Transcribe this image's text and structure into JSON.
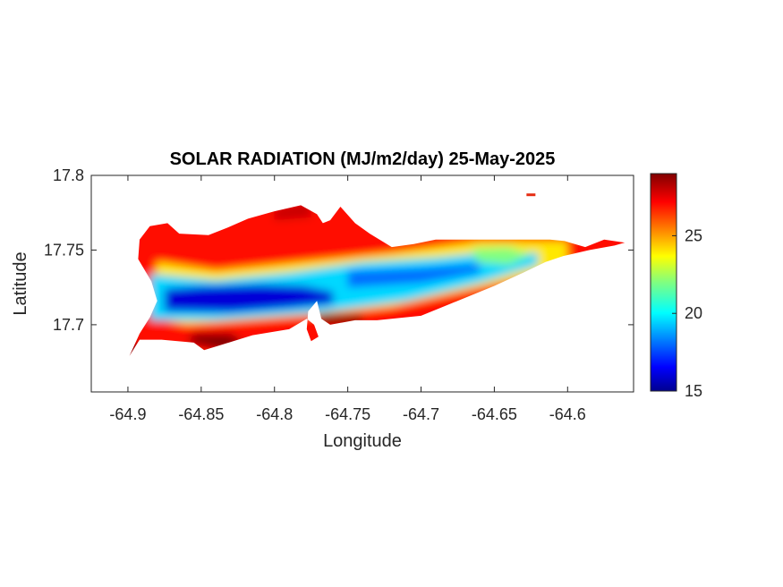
{
  "chart_data": {
    "type": "heatmap",
    "title": "SOLAR RADIATION (MJ/m2/day) 25-May-2025",
    "xlabel": "Longitude",
    "ylabel": "Latitude",
    "xlim": [
      -64.925,
      -64.555
    ],
    "ylim": [
      17.655,
      17.8
    ],
    "x_ticks": [
      -64.9,
      -64.85,
      -64.8,
      -64.75,
      -64.7,
      -64.65,
      -64.6
    ],
    "x_tick_labels": [
      "-64.9",
      "-64.85",
      "-64.8",
      "-64.75",
      "-64.7",
      "-64.65",
      "-64.6"
    ],
    "y_ticks": [
      17.8,
      17.75,
      17.7
    ],
    "y_tick_labels": [
      "17.8",
      "17.75",
      "17.7"
    ],
    "colorbar": {
      "colormap": "jet",
      "range": [
        15,
        29
      ],
      "ticks": [
        15,
        20,
        25
      ],
      "tick_labels": [
        "15",
        "20",
        "25"
      ]
    },
    "region_outline": [
      [
        -64.899,
        17.679
      ],
      [
        -64.892,
        17.69
      ],
      [
        -64.877,
        17.69
      ],
      [
        -64.855,
        17.688
      ],
      [
        -64.848,
        17.683
      ],
      [
        -64.838,
        17.686
      ],
      [
        -64.815,
        17.693
      ],
      [
        -64.79,
        17.697
      ],
      [
        -64.778,
        17.704
      ],
      [
        -64.773,
        17.7
      ],
      [
        -64.77,
        17.692
      ],
      [
        -64.775,
        17.689
      ],
      [
        -64.778,
        17.697
      ],
      [
        -64.777,
        17.709
      ],
      [
        -64.771,
        17.716
      ],
      [
        -64.768,
        17.704
      ],
      [
        -64.762,
        17.7
      ],
      [
        -64.745,
        17.703
      ],
      [
        -64.73,
        17.703
      ],
      [
        -64.7,
        17.706
      ],
      [
        -64.68,
        17.714
      ],
      [
        -64.65,
        17.726
      ],
      [
        -64.63,
        17.735
      ],
      [
        -64.615,
        17.742
      ],
      [
        -64.603,
        17.746
      ],
      [
        -64.585,
        17.75
      ],
      [
        -64.568,
        17.753
      ],
      [
        -64.561,
        17.755
      ],
      [
        -64.575,
        17.757
      ],
      [
        -64.588,
        17.752
      ],
      [
        -64.602,
        17.756
      ],
      [
        -64.612,
        17.757
      ],
      [
        -64.64,
        17.757
      ],
      [
        -64.66,
        17.757
      ],
      [
        -64.69,
        17.757
      ],
      [
        -64.705,
        17.754
      ],
      [
        -64.72,
        17.752
      ],
      [
        -64.735,
        17.761
      ],
      [
        -64.745,
        17.768
      ],
      [
        -64.755,
        17.779
      ],
      [
        -64.762,
        17.77
      ],
      [
        -64.767,
        17.768
      ],
      [
        -64.771,
        17.774
      ],
      [
        -64.782,
        17.78
      ],
      [
        -64.8,
        17.776
      ],
      [
        -64.818,
        17.771
      ],
      [
        -64.832,
        17.765
      ],
      [
        -64.845,
        17.76
      ],
      [
        -64.865,
        17.761
      ],
      [
        -64.873,
        17.768
      ],
      [
        -64.885,
        17.766
      ],
      [
        -64.892,
        17.757
      ],
      [
        -64.893,
        17.744
      ],
      [
        -64.884,
        17.729
      ],
      [
        -64.88,
        17.716
      ],
      [
        -64.885,
        17.705
      ],
      [
        -64.892,
        17.694
      ]
    ],
    "offshore_islet": [
      -64.625,
      17.787
    ],
    "value_bands": [
      {
        "description": "north coast",
        "value": 27
      },
      {
        "description": "north slope",
        "value": 24
      },
      {
        "description": "central ridge west",
        "value": 16
      },
      {
        "description": "central ridge",
        "value": 19.5
      },
      {
        "description": "east end interior",
        "value": 22
      },
      {
        "description": "south coast",
        "value": 27
      },
      {
        "description": "southwest and south shore extremes",
        "value": 29
      }
    ]
  },
  "colors": {
    "axis": "#262626",
    "gridbox": "#262626"
  }
}
